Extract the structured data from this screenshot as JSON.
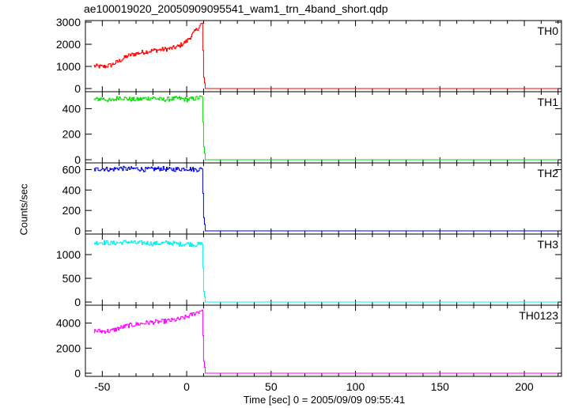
{
  "chart_data": {
    "type": "line",
    "title": "ae100019020_20050909095541_wam1_trn_4band_short.qdp",
    "xlabel": "Time [sec] 0 = 2005/09/09 09:55:41",
    "ylabel": "Counts/sec",
    "xlim": [
      -60,
      222
    ],
    "xticks": [
      -50,
      0,
      50,
      100,
      150,
      200
    ],
    "grid": false,
    "panels": [
      {
        "name": "TH0",
        "color": "#ff0000",
        "ylim": [
          0,
          3000
        ],
        "yticks": [
          0,
          1000,
          2000,
          3000
        ],
        "x": [
          -55,
          -50,
          -45,
          -40,
          -35,
          -30,
          -25,
          -20,
          -15,
          -10,
          -5,
          0,
          5,
          9,
          10,
          11,
          220
        ],
        "y": [
          1020,
          980,
          1060,
          1250,
          1480,
          1580,
          1660,
          1720,
          1760,
          1800,
          1900,
          2150,
          2600,
          2950,
          500,
          0,
          0
        ]
      },
      {
        "name": "TH1",
        "color": "#00e000",
        "ylim": [
          0,
          520
        ],
        "yticks": [
          0,
          200,
          400
        ],
        "x": [
          -55,
          -50,
          -45,
          -40,
          -35,
          -30,
          -25,
          -20,
          -15,
          -10,
          -5,
          0,
          5,
          9,
          10,
          11,
          220
        ],
        "y": [
          470,
          480,
          460,
          490,
          475,
          470,
          480,
          485,
          470,
          475,
          480,
          470,
          480,
          490,
          100,
          0,
          0
        ]
      },
      {
        "name": "TH2",
        "color": "#0000e0",
        "ylim": [
          0,
          650
        ],
        "yticks": [
          0,
          200,
          400,
          600
        ],
        "x": [
          -55,
          -50,
          -45,
          -40,
          -35,
          -30,
          -25,
          -20,
          -15,
          -10,
          -5,
          0,
          5,
          9,
          10,
          11,
          220
        ],
        "y": [
          600,
          610,
          600,
          615,
          605,
          610,
          600,
          605,
          610,
          600,
          605,
          610,
          600,
          605,
          130,
          0,
          0
        ]
      },
      {
        "name": "TH3",
        "color": "#00f0f0",
        "ylim": [
          0,
          1400
        ],
        "yticks": [
          0,
          500,
          1000
        ],
        "x": [
          -55,
          -50,
          -45,
          -40,
          -35,
          -30,
          -25,
          -20,
          -15,
          -10,
          -5,
          0,
          5,
          9,
          10,
          11,
          220
        ],
        "y": [
          1250,
          1260,
          1240,
          1250,
          1270,
          1240,
          1250,
          1230,
          1240,
          1250,
          1220,
          1230,
          1210,
          1220,
          220,
          0,
          0
        ]
      },
      {
        "name": "TH0123",
        "color": "#ff00ff",
        "ylim": [
          0,
          5300
        ],
        "yticks": [
          0,
          2000,
          4000
        ],
        "x": [
          -55,
          -50,
          -45,
          -40,
          -35,
          -30,
          -25,
          -20,
          -15,
          -10,
          -5,
          0,
          5,
          9,
          10,
          11,
          220
        ],
        "y": [
          3380,
          3350,
          3380,
          3600,
          3800,
          3900,
          4000,
          4080,
          4120,
          4200,
          4300,
          4500,
          4800,
          5050,
          950,
          0,
          0
        ]
      }
    ]
  }
}
